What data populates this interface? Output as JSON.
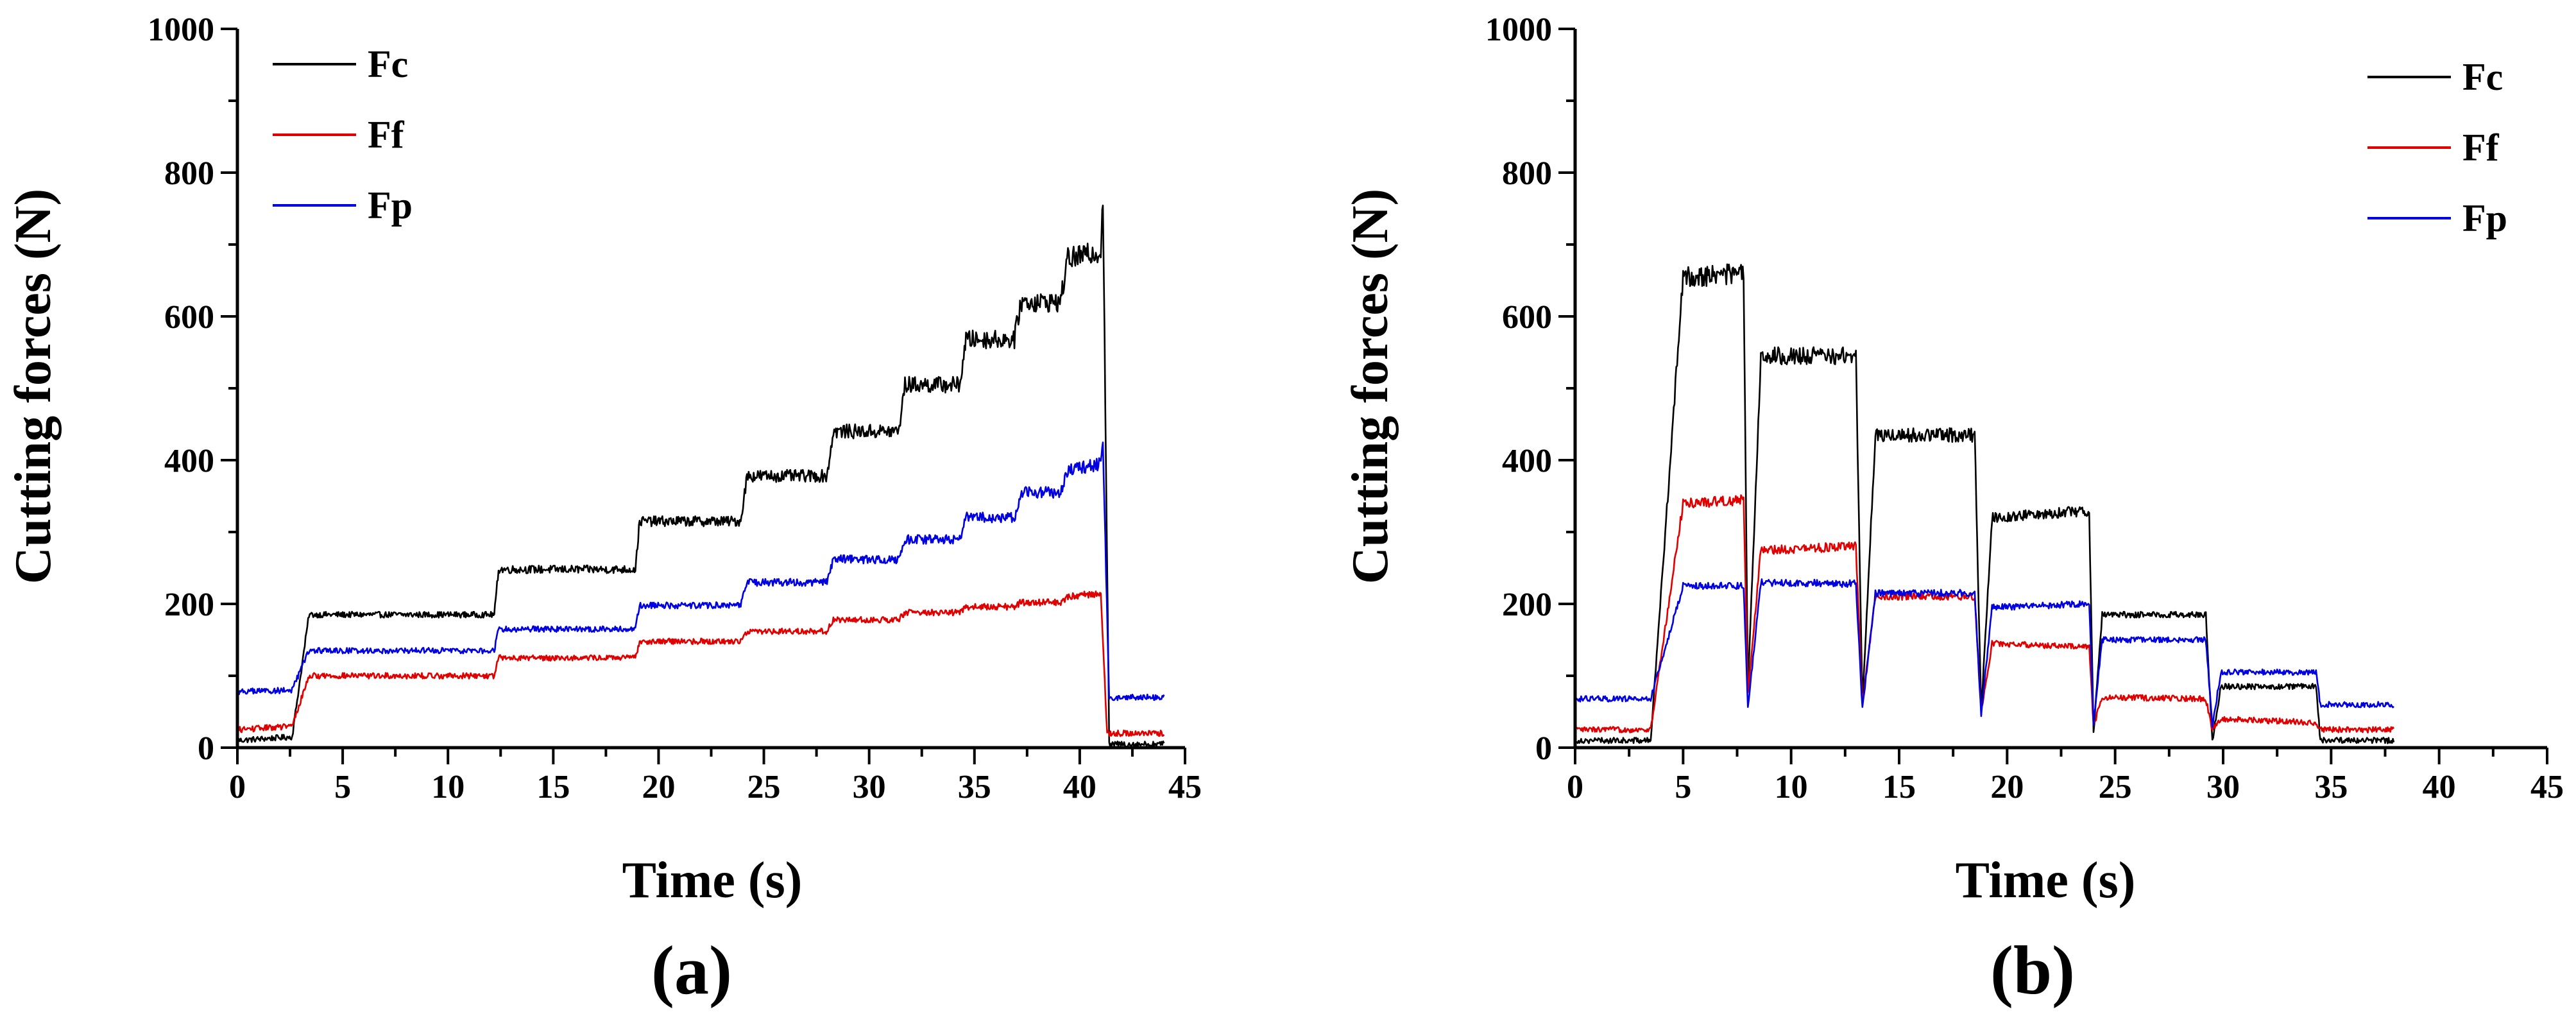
{
  "figure": {
    "panels": [
      "(a)",
      "(b)"
    ]
  },
  "chart_data": [
    {
      "type": "line",
      "panel_label": "(a)",
      "title": "",
      "xlabel": "Time (s)",
      "ylabel": "Cutting forces (N)",
      "xlim": [
        0,
        45
      ],
      "ylim": [
        0,
        1000
      ],
      "xticks": [
        0,
        5,
        10,
        15,
        20,
        25,
        30,
        35,
        40,
        45
      ],
      "yticks": [
        0,
        200,
        400,
        600,
        800,
        1000
      ],
      "legend_position": "top-left",
      "series": [
        {
          "name": "Fc",
          "color": "#000000",
          "x": [
            0,
            2.6,
            3.4,
            12.2,
            12.4,
            18.9,
            19.1,
            23.9,
            24.2,
            28.0,
            28.3,
            31.4,
            31.7,
            34.3,
            34.6,
            36.9,
            37.2,
            39.1,
            39.4,
            41.0,
            41.1,
            41.4,
            44
          ],
          "y": [
            10,
            15,
            185,
            185,
            248,
            248,
            315,
            315,
            378,
            378,
            440,
            440,
            505,
            505,
            568,
            568,
            620,
            620,
            680,
            690,
            770,
            5,
            5
          ]
        },
        {
          "name": "Ff",
          "color": "#e00000",
          "x": [
            0,
            2.6,
            3.4,
            12.2,
            12.4,
            18.9,
            19.1,
            23.9,
            24.2,
            28.0,
            28.3,
            31.4,
            31.7,
            34.3,
            34.6,
            36.9,
            37.2,
            39.1,
            39.4,
            41.0,
            41.3,
            44
          ],
          "y": [
            25,
            30,
            100,
            100,
            125,
            125,
            148,
            148,
            162,
            162,
            178,
            178,
            188,
            188,
            196,
            196,
            202,
            202,
            210,
            215,
            20,
            20
          ]
        },
        {
          "name": "Fp",
          "color": "#0000e0",
          "x": [
            0,
            2.6,
            3.4,
            12.2,
            12.4,
            18.9,
            19.1,
            23.9,
            24.2,
            28.0,
            28.3,
            31.4,
            31.7,
            34.3,
            34.6,
            36.9,
            37.2,
            39.1,
            39.4,
            41.0,
            41.1,
            41.4,
            44
          ],
          "y": [
            78,
            80,
            135,
            135,
            165,
            165,
            198,
            198,
            230,
            230,
            262,
            262,
            290,
            290,
            320,
            320,
            355,
            355,
            385,
            395,
            420,
            70,
            70
          ]
        }
      ]
    },
    {
      "type": "line",
      "panel_label": "(b)",
      "title": "",
      "xlabel": "Time (s)",
      "ylabel": "Cutting forces (N)",
      "xlim": [
        0,
        45
      ],
      "ylim": [
        0,
        1000
      ],
      "xticks": [
        0,
        5,
        10,
        15,
        20,
        25,
        30,
        35,
        40,
        45
      ],
      "yticks": [
        0,
        200,
        400,
        600,
        800,
        1000
      ],
      "legend_position": "top-right",
      "series": [
        {
          "name": "Fc",
          "color": "#000000",
          "x": [
            0,
            3.5,
            5.0,
            7.8,
            8.0,
            8.6,
            13.0,
            13.3,
            13.9,
            18.5,
            18.8,
            19.3,
            23.8,
            24.0,
            24.4,
            29.2,
            29.5,
            29.9,
            34.3,
            34.5,
            37.9
          ],
          "y": [
            10,
            10,
            655,
            660,
            80,
            545,
            545,
            60,
            435,
            435,
            50,
            320,
            330,
            20,
            185,
            185,
            10,
            85,
            85,
            10,
            10
          ]
        },
        {
          "name": "Ff",
          "color": "#e00000",
          "x": [
            0,
            3.5,
            5.0,
            7.8,
            8.0,
            8.6,
            13.0,
            13.3,
            13.9,
            18.5,
            18.8,
            19.3,
            23.8,
            24.0,
            24.4,
            29.2,
            29.5,
            29.9,
            34.3,
            34.5,
            37.9
          ],
          "y": [
            25,
            25,
            340,
            345,
            75,
            275,
            280,
            60,
            210,
            210,
            50,
            145,
            140,
            30,
            70,
            68,
            25,
            40,
            35,
            25,
            25
          ]
        },
        {
          "name": "Fp",
          "color": "#0000e0",
          "x": [
            0,
            3.5,
            5.0,
            7.8,
            8.0,
            8.6,
            13.0,
            13.3,
            13.9,
            18.5,
            18.8,
            19.3,
            23.8,
            24.0,
            24.4,
            29.2,
            29.5,
            29.9,
            34.3,
            34.5,
            37.9
          ],
          "y": [
            68,
            68,
            225,
            225,
            55,
            230,
            228,
            55,
            215,
            215,
            45,
            195,
            200,
            35,
            150,
            150,
            30,
            105,
            105,
            60,
            60
          ]
        }
      ]
    }
  ]
}
